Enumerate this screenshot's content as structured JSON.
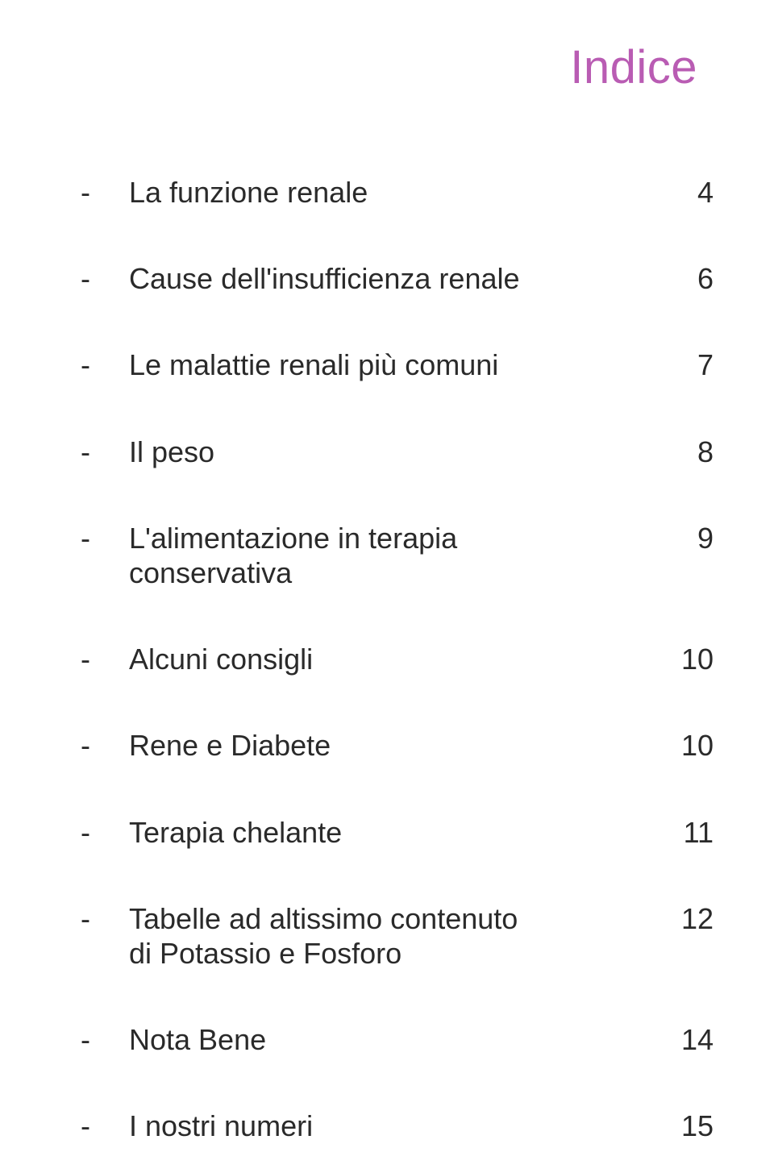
{
  "title": "Indice",
  "title_color": "#b95cb3",
  "text_color": "#2a2a2a",
  "font_family": "Trebuchet MS",
  "toc": [
    {
      "label": "La funzione renale",
      "page": "4"
    },
    {
      "label": "Cause dell'insufficienza renale",
      "page": "6"
    },
    {
      "label": "Le malattie renali più comuni",
      "page": "7"
    },
    {
      "label": "Il peso",
      "page": "8"
    },
    {
      "label": "L'alimentazione in terapia\nconservativa",
      "page": "9"
    },
    {
      "label": "Alcuni consigli",
      "page": "10"
    },
    {
      "label": "Rene e Diabete",
      "page": "10"
    },
    {
      "label": "Terapia chelante",
      "page": "11"
    },
    {
      "label": "Tabelle ad altissimo contenuto\ndi Potassio e Fosforo",
      "page": "12"
    },
    {
      "label": "Nota Bene",
      "page": "14"
    },
    {
      "label": "I nostri numeri",
      "page": "15"
    }
  ]
}
